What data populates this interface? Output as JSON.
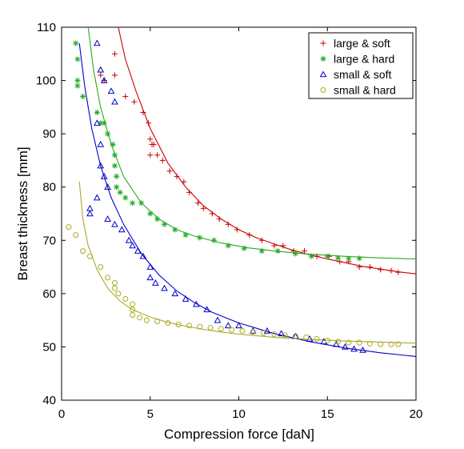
{
  "chart_data": {
    "type": "scatter",
    "xlabel": "Compression force [daN]",
    "ylabel": "Breast thickness [mm]",
    "xlim": [
      0,
      20
    ],
    "ylim": [
      40,
      110
    ],
    "xticks": [
      "0",
      "5",
      "10",
      "15",
      "20"
    ],
    "yticks": [
      "40",
      "50",
      "60",
      "70",
      "80",
      "90",
      "100",
      "110"
    ],
    "grid": false,
    "legend_position": "top-right",
    "series": [
      {
        "name": "large & soft",
        "marker": "plus",
        "color": "#cc0000",
        "points": [
          [
            2.2,
            101
          ],
          [
            2.4,
            100
          ],
          [
            3.0,
            105
          ],
          [
            3.0,
            101
          ],
          [
            3.6,
            97
          ],
          [
            4.1,
            96
          ],
          [
            4.6,
            94
          ],
          [
            4.9,
            92
          ],
          [
            5.0,
            89
          ],
          [
            5.0,
            86
          ],
          [
            5.1,
            88
          ],
          [
            5.2,
            88
          ],
          [
            5.4,
            86
          ],
          [
            5.7,
            85
          ],
          [
            6.1,
            83
          ],
          [
            6.5,
            82
          ],
          [
            6.9,
            81
          ],
          [
            7.2,
            79
          ],
          [
            7.7,
            77
          ],
          [
            8.0,
            76
          ],
          [
            8.5,
            75
          ],
          [
            8.9,
            74
          ],
          [
            9.4,
            73
          ],
          [
            9.9,
            72
          ],
          [
            10.6,
            71
          ],
          [
            11.3,
            70
          ],
          [
            12.0,
            69
          ],
          [
            12.5,
            69
          ],
          [
            13.1,
            68
          ],
          [
            13.7,
            68
          ],
          [
            14.4,
            67
          ],
          [
            15.1,
            67
          ],
          [
            15.7,
            66
          ],
          [
            16.2,
            66
          ],
          [
            16.8,
            65
          ],
          [
            17.4,
            65
          ],
          [
            18.0,
            64.5
          ],
          [
            18.6,
            64.3
          ],
          [
            19.0,
            64
          ]
        ],
        "fit": [
          [
            3.2,
            110
          ],
          [
            3.6,
            104
          ],
          [
            4.2,
            98
          ],
          [
            5.0,
            91
          ],
          [
            6.0,
            84.5
          ],
          [
            7.0,
            80
          ],
          [
            8.0,
            76.5
          ],
          [
            9.0,
            74
          ],
          [
            10.0,
            72
          ],
          [
            11.0,
            70.5
          ],
          [
            12.0,
            69.3
          ],
          [
            13.0,
            68.2
          ],
          [
            14.0,
            67.3
          ],
          [
            15.0,
            66.5
          ],
          [
            16.0,
            65.8
          ],
          [
            17.0,
            65.1
          ],
          [
            18.0,
            64.6
          ],
          [
            19.0,
            64.1
          ],
          [
            20.0,
            63.7
          ]
        ]
      },
      {
        "name": "large & hard",
        "marker": "asterisk",
        "color": "#22aa22",
        "points": [
          [
            0.8,
            107
          ],
          [
            0.9,
            104
          ],
          [
            0.9,
            100
          ],
          [
            0.9,
            99
          ],
          [
            1.2,
            97
          ],
          [
            2.0,
            94
          ],
          [
            2.2,
            92
          ],
          [
            2.4,
            92
          ],
          [
            2.6,
            90
          ],
          [
            2.9,
            88
          ],
          [
            3.0,
            86
          ],
          [
            3.0,
            84
          ],
          [
            3.1,
            82
          ],
          [
            3.1,
            80
          ],
          [
            3.3,
            79
          ],
          [
            3.6,
            78
          ],
          [
            4.0,
            77
          ],
          [
            4.5,
            77
          ],
          [
            5.0,
            75
          ],
          [
            5.4,
            74
          ],
          [
            5.8,
            73
          ],
          [
            6.4,
            72
          ],
          [
            7.0,
            71
          ],
          [
            7.8,
            70.5
          ],
          [
            8.6,
            70
          ],
          [
            9.4,
            69
          ],
          [
            10.3,
            68.5
          ],
          [
            11.3,
            68
          ],
          [
            12.2,
            68
          ],
          [
            13.2,
            67.5
          ],
          [
            14.1,
            67
          ],
          [
            15.0,
            67
          ],
          [
            15.6,
            66.7
          ],
          [
            16.2,
            66.6
          ],
          [
            16.8,
            66.6
          ]
        ],
        "fit": [
          [
            1.5,
            110
          ],
          [
            1.8,
            102
          ],
          [
            2.2,
            95
          ],
          [
            2.8,
            88
          ],
          [
            3.5,
            82
          ],
          [
            4.5,
            77
          ],
          [
            5.5,
            74
          ],
          [
            6.5,
            72
          ],
          [
            7.5,
            70.8
          ],
          [
            9.0,
            69.5
          ],
          [
            10.5,
            68.6
          ],
          [
            12.0,
            68
          ],
          [
            14.0,
            67.4
          ],
          [
            16.0,
            67
          ],
          [
            18.0,
            66.7
          ],
          [
            20.0,
            66.5
          ]
        ]
      },
      {
        "name": "small & soft",
        "marker": "triangle",
        "color": "#0000cc",
        "points": [
          [
            2.0,
            107
          ],
          [
            2.2,
            102
          ],
          [
            2.4,
            100
          ],
          [
            2.8,
            98
          ],
          [
            3.0,
            96
          ],
          [
            2.0,
            92
          ],
          [
            2.2,
            88
          ],
          [
            2.2,
            84
          ],
          [
            2.4,
            82
          ],
          [
            2.6,
            80
          ],
          [
            2.0,
            78
          ],
          [
            1.6,
            76
          ],
          [
            1.6,
            75
          ],
          [
            2.6,
            74
          ],
          [
            3.0,
            73
          ],
          [
            3.4,
            72
          ],
          [
            3.8,
            70
          ],
          [
            4.0,
            69
          ],
          [
            4.3,
            68
          ],
          [
            4.6,
            67
          ],
          [
            5.0,
            65
          ],
          [
            5.0,
            63
          ],
          [
            5.3,
            62
          ],
          [
            5.8,
            61
          ],
          [
            6.4,
            60
          ],
          [
            7.0,
            59
          ],
          [
            7.6,
            58
          ],
          [
            8.2,
            57
          ],
          [
            8.8,
            55
          ],
          [
            9.4,
            54
          ],
          [
            10.0,
            54
          ],
          [
            10.8,
            53
          ],
          [
            11.6,
            53
          ],
          [
            12.4,
            52.5
          ],
          [
            13.2,
            52
          ],
          [
            14.0,
            51.5
          ],
          [
            14.8,
            51
          ],
          [
            15.5,
            50.5
          ],
          [
            16.0,
            50
          ],
          [
            16.5,
            49.6
          ],
          [
            17.0,
            49.4
          ]
        ],
        "fit": [
          [
            1.0,
            107
          ],
          [
            1.3,
            99
          ],
          [
            1.7,
            91
          ],
          [
            2.2,
            84
          ],
          [
            2.8,
            78
          ],
          [
            3.5,
            73
          ],
          [
            4.5,
            67.5
          ],
          [
            5.5,
            63.5
          ],
          [
            6.5,
            60.5
          ],
          [
            7.5,
            58.3
          ],
          [
            8.5,
            56.5
          ],
          [
            10.0,
            54.5
          ],
          [
            12.0,
            52.5
          ],
          [
            14.0,
            51
          ],
          [
            16.0,
            49.8
          ],
          [
            18.0,
            48.9
          ],
          [
            20.0,
            48.2
          ]
        ]
      },
      {
        "name": "small & hard",
        "marker": "circle",
        "color": "#aaaa22",
        "points": [
          [
            0.4,
            72.5
          ],
          [
            0.8,
            71
          ],
          [
            1.2,
            68
          ],
          [
            1.6,
            67
          ],
          [
            2.2,
            65
          ],
          [
            2.6,
            63
          ],
          [
            3.0,
            62
          ],
          [
            3.0,
            61
          ],
          [
            3.2,
            60
          ],
          [
            3.6,
            59
          ],
          [
            4.0,
            58
          ],
          [
            4.0,
            57
          ],
          [
            4.0,
            56
          ],
          [
            4.4,
            55.5
          ],
          [
            4.8,
            55
          ],
          [
            5.4,
            54.8
          ],
          [
            6.0,
            54.5
          ],
          [
            6.6,
            54.2
          ],
          [
            7.2,
            54
          ],
          [
            7.8,
            53.8
          ],
          [
            8.4,
            53.6
          ],
          [
            9.0,
            53.4
          ],
          [
            9.6,
            53.2
          ],
          [
            10.2,
            53
          ],
          [
            10.8,
            52.8
          ],
          [
            11.4,
            52.6
          ],
          [
            12.0,
            52.4
          ],
          [
            12.6,
            52.2
          ],
          [
            13.2,
            52
          ],
          [
            13.8,
            51.8
          ],
          [
            14.4,
            51.5
          ],
          [
            15.0,
            51.2
          ],
          [
            15.6,
            51
          ],
          [
            16.2,
            50.8
          ],
          [
            16.8,
            50.8
          ],
          [
            17.4,
            50.6
          ],
          [
            18.0,
            50.5
          ],
          [
            18.6,
            50.5
          ],
          [
            19.0,
            50.5
          ]
        ],
        "fit": [
          [
            1.0,
            81
          ],
          [
            1.2,
            74
          ],
          [
            1.5,
            69
          ],
          [
            2.0,
            64.5
          ],
          [
            2.6,
            61
          ],
          [
            3.3,
            58.6
          ],
          [
            4.0,
            57
          ],
          [
            5.0,
            55.6
          ],
          [
            6.0,
            54.6
          ],
          [
            7.0,
            53.9
          ],
          [
            8.0,
            53.3
          ],
          [
            9.0,
            52.8
          ],
          [
            10.0,
            52.4
          ],
          [
            12.0,
            51.8
          ],
          [
            14.0,
            51.4
          ],
          [
            16.0,
            51.1
          ],
          [
            18.0,
            50.9
          ],
          [
            20.0,
            50.7
          ]
        ]
      }
    ]
  }
}
